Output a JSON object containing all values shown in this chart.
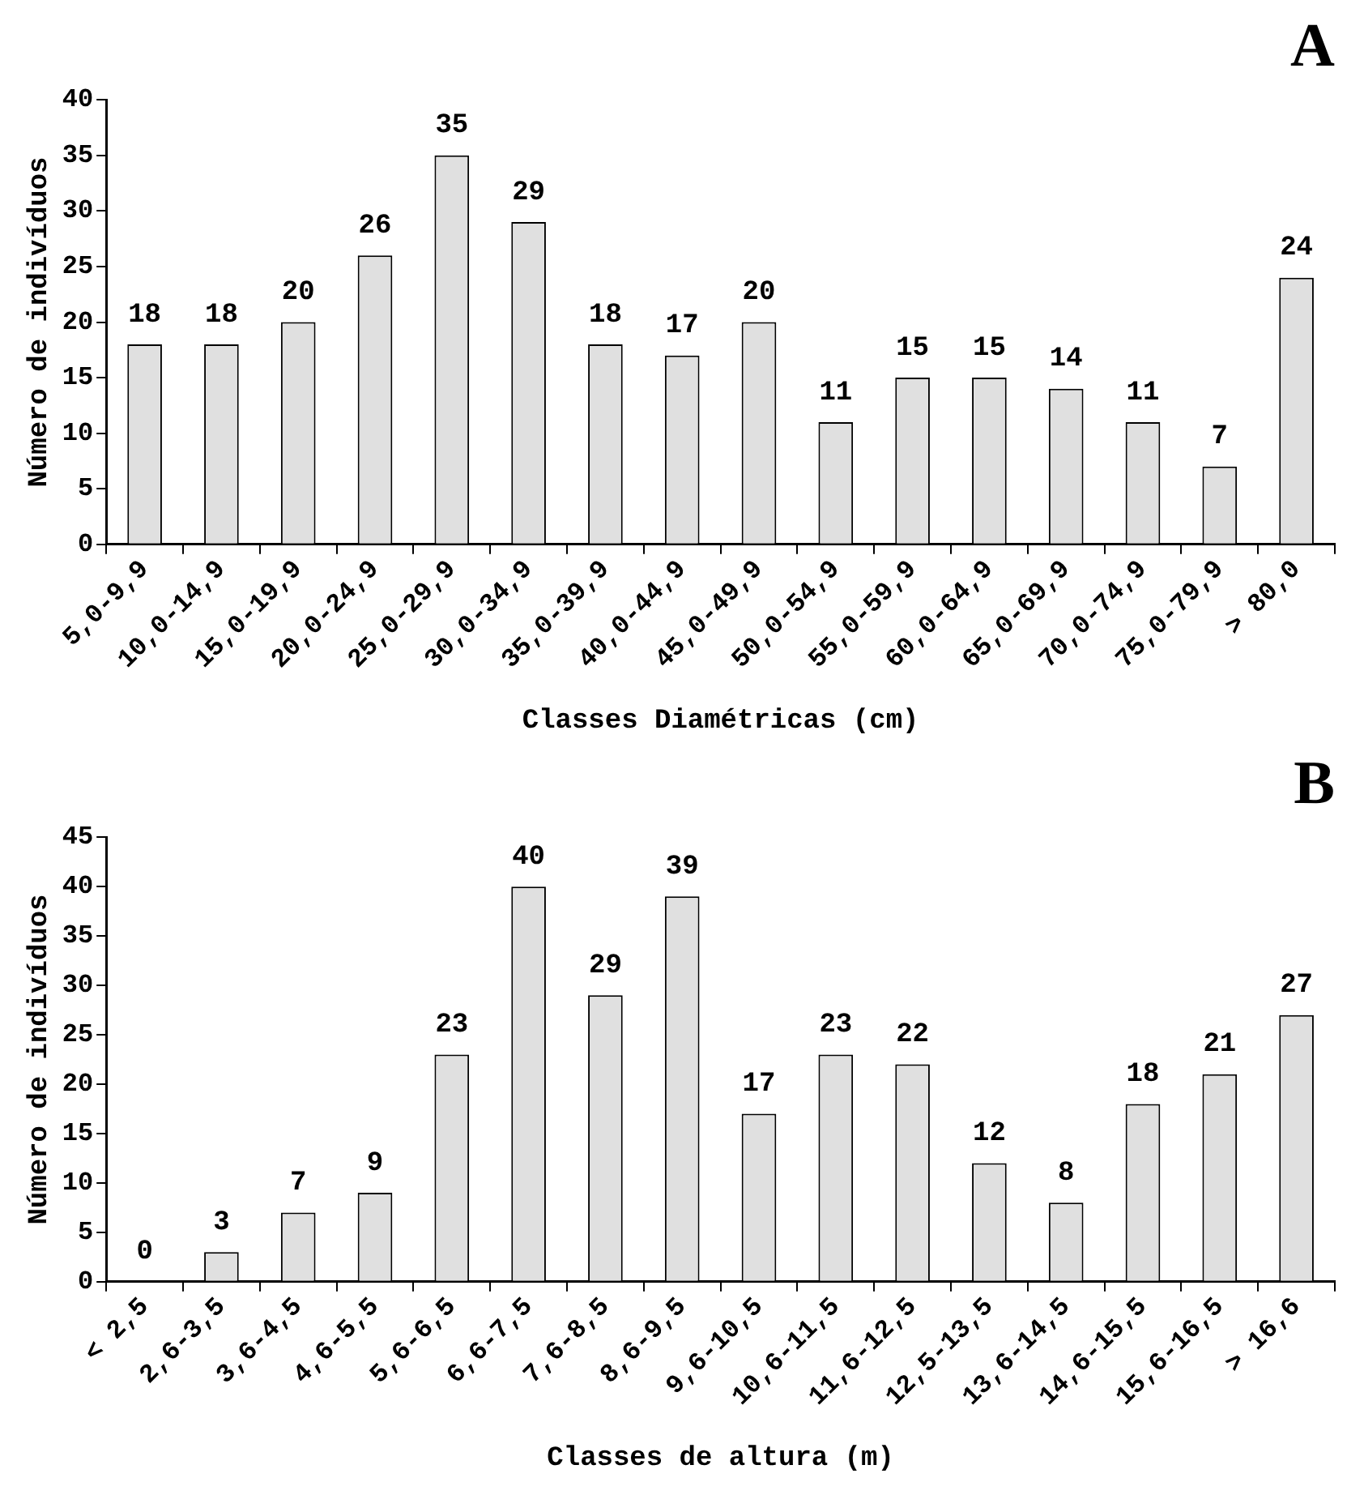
{
  "chart_data": [
    {
      "type": "bar",
      "title": "A",
      "xlabel": "Classes Diamétricas (cm)",
      "ylabel": "Número de indivíduos",
      "categories": [
        "5,0-9,9",
        "10,0-14,9",
        "15,0-19,9",
        "20,0-24,9",
        "25,0-29,9",
        "30,0-34,9",
        "35,0-39,9",
        "40,0-44,9",
        "45,0-49,9",
        "50,0-54,9",
        "55,0-59,9",
        "60,0-64,9",
        "65,0-69,9",
        "70,0-74,9",
        "75,0-79,9",
        "> 80,0"
      ],
      "values": [
        18,
        18,
        20,
        26,
        35,
        29,
        18,
        17,
        20,
        11,
        15,
        15,
        14,
        11,
        7,
        24
      ],
      "color": "#e0e0e0",
      "ylim": [
        0,
        40
      ],
      "yticks": [
        0,
        5,
        10,
        15,
        20,
        25,
        30,
        35,
        40
      ],
      "grid": false,
      "legend": false,
      "data_labels": true
    },
    {
      "type": "bar",
      "title": "B",
      "xlabel": "Classes de altura (m)",
      "ylabel": "Número de indivíduos",
      "categories": [
        "< 2,5",
        "2,6-3,5",
        "3,6-4,5",
        "4,6-5,5",
        "5,6-6,5",
        "6,6-7,5",
        "7,6-8,5",
        "8,6-9,5",
        "9,6-10,5",
        "10,6-11,5",
        "11,6-12,5",
        "12,5-13,5",
        "13,6-14,5",
        "14,6-15,5",
        "15,6-16,5",
        "> 16,6"
      ],
      "values": [
        0,
        3,
        7,
        9,
        23,
        40,
        29,
        39,
        17,
        23,
        22,
        12,
        8,
        18,
        21,
        27
      ],
      "color": "#e0e0e0",
      "ylim": [
        0,
        45
      ],
      "yticks": [
        0,
        5,
        10,
        15,
        20,
        25,
        30,
        35,
        40,
        45
      ],
      "grid": false,
      "legend": false,
      "data_labels": true
    }
  ]
}
